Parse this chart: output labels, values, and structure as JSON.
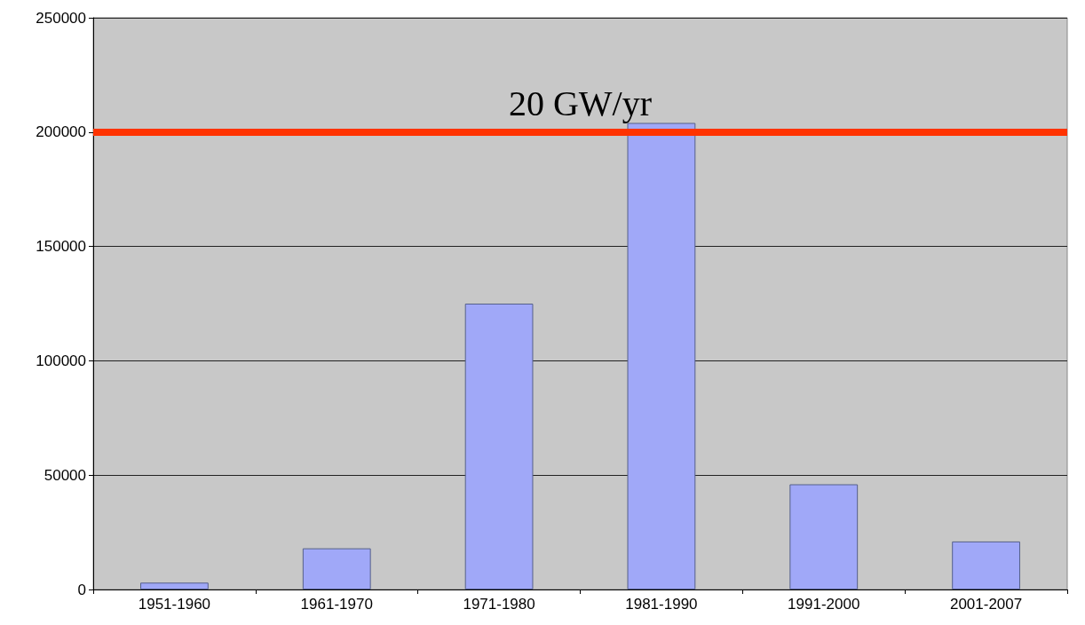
{
  "chart_data": {
    "type": "bar",
    "categories": [
      "1951-1960",
      "1961-1970",
      "1971-1980",
      "1981-1990",
      "1991-2000",
      "2001-2007"
    ],
    "values": [
      3000,
      18000,
      125000,
      204000,
      46000,
      21000
    ],
    "color": "#a0a8f8",
    "ylim": [
      0,
      250000
    ],
    "yticks": [
      0,
      50000,
      100000,
      150000,
      200000,
      250000
    ],
    "grid": "y",
    "ref_lines": [
      {
        "axis": "y",
        "value": 200000,
        "label": "20 GW/yr",
        "color": "#ff3300"
      }
    ]
  }
}
